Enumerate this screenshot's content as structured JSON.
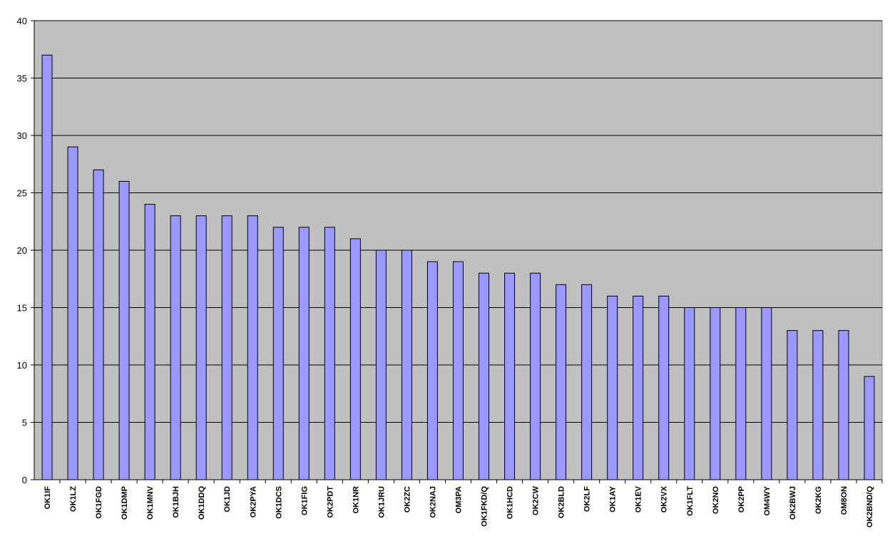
{
  "chart_data": {
    "type": "bar",
    "categories": [
      "OK1IF",
      "OK1LZ",
      "OK1FGD",
      "OK1DMP",
      "OK1MNV",
      "OK1BJH",
      "OK1DDQ",
      "OK1JD",
      "OK2PYA",
      "OK1DCS",
      "OK1FIG",
      "OK2PDT",
      "OK1NR",
      "OK1JRU",
      "OK2ZC",
      "OK2NAJ",
      "OM3PA",
      "OK1FKD/Q",
      "OK1HCD",
      "OK2CW",
      "OK2BLD",
      "OK2LF",
      "OK1AY",
      "OK1EV",
      "OK2VX",
      "OK1FLT",
      "OK2NO",
      "OK2PP",
      "OM4WY",
      "OK2BWJ",
      "OK2KG",
      "OM8ON",
      "OK2BND/Q"
    ],
    "values": [
      37,
      29,
      27,
      26,
      24,
      23,
      23,
      23,
      23,
      22,
      22,
      22,
      21,
      20,
      20,
      19,
      19,
      18,
      18,
      18,
      17,
      17,
      16,
      16,
      16,
      15,
      15,
      15,
      15,
      13,
      13,
      13,
      9
    ],
    "color": "#9999ff",
    "plot_background": "#c0c0c0",
    "ylim": [
      0,
      40
    ],
    "yticks": [
      0,
      5,
      10,
      15,
      20,
      25,
      30,
      35,
      40
    ],
    "grid": true
  }
}
